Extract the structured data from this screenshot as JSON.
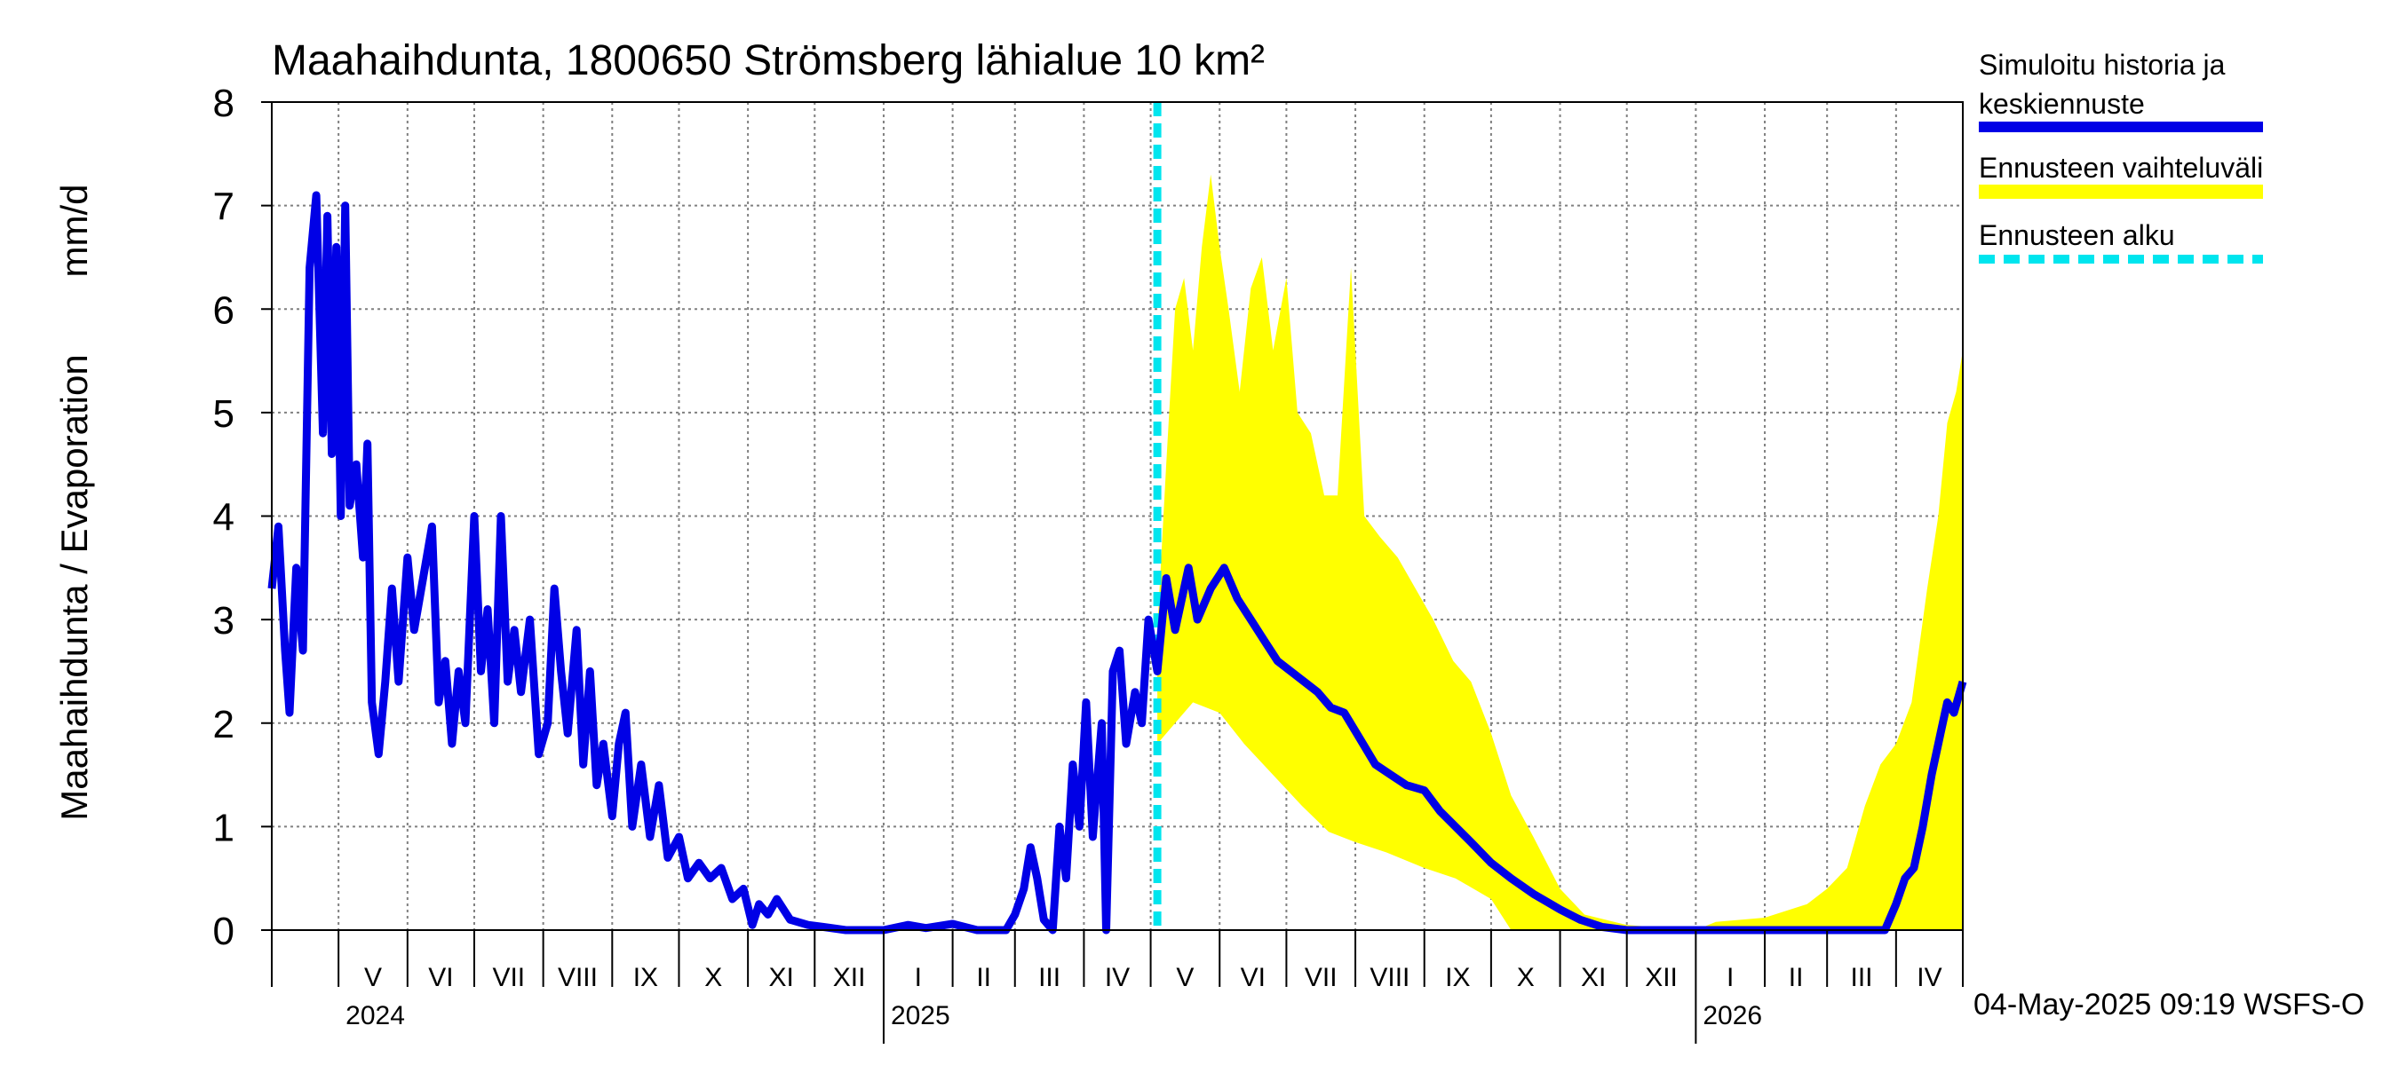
{
  "chart_data": {
    "type": "line",
    "title": "Maahaihdunta, 1800650 Strömsberg lähialue 10 km²",
    "ylabel_left": "Maahaihdunta / Evaporation",
    "ylabel_unit": "mm/d",
    "ylim": [
      0,
      8
    ],
    "yticks": [
      "0",
      "1",
      "2",
      "3",
      "4",
      "5",
      "6",
      "7",
      "8"
    ],
    "months": [
      "V",
      "VI",
      "VII",
      "VIII",
      "IX",
      "X",
      "XI",
      "XII",
      "I",
      "II",
      "III",
      "IV",
      "V",
      "VI",
      "VII",
      "VIII",
      "IX",
      "X",
      "XI",
      "XII",
      "I",
      "II",
      "III",
      "IV"
    ],
    "years": [
      "2024",
      "2025",
      "2026"
    ],
    "x_start": "2024-04-01",
    "x_end": "2026-05-01",
    "forecast_start": "2025-05-04",
    "legend": {
      "history": "Simuloitu historia ja",
      "history2": "keskiennuste",
      "range": "Ennusteen vaihteluväli",
      "start": "Ennusteen alku"
    },
    "colors": {
      "history": "#0000e6",
      "range": "#ffff00",
      "start": "#00e5ee",
      "grid": "#808080"
    },
    "series": [
      {
        "name": "Simuloitu historia ja keskiennuste",
        "points": [
          [
            "2024-04-01",
            3.3
          ],
          [
            "2024-04-04",
            3.9
          ],
          [
            "2024-04-07",
            2.7
          ],
          [
            "2024-04-09",
            2.1
          ],
          [
            "2024-04-12",
            3.5
          ],
          [
            "2024-04-15",
            2.7
          ],
          [
            "2024-04-18",
            6.4
          ],
          [
            "2024-04-21",
            7.1
          ],
          [
            "2024-04-24",
            4.8
          ],
          [
            "2024-04-26",
            6.9
          ],
          [
            "2024-04-28",
            4.6
          ],
          [
            "2024-04-30",
            6.6
          ],
          [
            "2024-05-02",
            4.0
          ],
          [
            "2024-05-04",
            7.0
          ],
          [
            "2024-05-06",
            4.1
          ],
          [
            "2024-05-09",
            4.5
          ],
          [
            "2024-05-12",
            3.6
          ],
          [
            "2024-05-14",
            4.7
          ],
          [
            "2024-05-16",
            2.2
          ],
          [
            "2024-05-19",
            1.7
          ],
          [
            "2024-05-22",
            2.4
          ],
          [
            "2024-05-25",
            3.3
          ],
          [
            "2024-05-28",
            2.4
          ],
          [
            "2024-06-01",
            3.6
          ],
          [
            "2024-06-04",
            2.9
          ],
          [
            "2024-06-08",
            3.4
          ],
          [
            "2024-06-12",
            3.9
          ],
          [
            "2024-06-15",
            2.2
          ],
          [
            "2024-06-18",
            2.6
          ],
          [
            "2024-06-21",
            1.8
          ],
          [
            "2024-06-24",
            2.5
          ],
          [
            "2024-06-27",
            2.0
          ],
          [
            "2024-07-01",
            4.0
          ],
          [
            "2024-07-04",
            2.5
          ],
          [
            "2024-07-07",
            3.1
          ],
          [
            "2024-07-10",
            2.0
          ],
          [
            "2024-07-13",
            4.0
          ],
          [
            "2024-07-16",
            2.4
          ],
          [
            "2024-07-19",
            2.9
          ],
          [
            "2024-07-22",
            2.3
          ],
          [
            "2024-07-26",
            3.0
          ],
          [
            "2024-07-30",
            1.7
          ],
          [
            "2024-08-03",
            2.0
          ],
          [
            "2024-08-06",
            3.3
          ],
          [
            "2024-08-09",
            2.5
          ],
          [
            "2024-08-12",
            1.9
          ],
          [
            "2024-08-16",
            2.9
          ],
          [
            "2024-08-19",
            1.6
          ],
          [
            "2024-08-22",
            2.5
          ],
          [
            "2024-08-25",
            1.4
          ],
          [
            "2024-08-28",
            1.8
          ],
          [
            "2024-09-01",
            1.1
          ],
          [
            "2024-09-04",
            1.8
          ],
          [
            "2024-09-07",
            2.1
          ],
          [
            "2024-09-10",
            1.0
          ],
          [
            "2024-09-14",
            1.6
          ],
          [
            "2024-09-18",
            0.9
          ],
          [
            "2024-09-22",
            1.4
          ],
          [
            "2024-09-26",
            0.7
          ],
          [
            "2024-10-01",
            0.9
          ],
          [
            "2024-10-05",
            0.5
          ],
          [
            "2024-10-10",
            0.65
          ],
          [
            "2024-10-15",
            0.5
          ],
          [
            "2024-10-20",
            0.6
          ],
          [
            "2024-10-25",
            0.3
          ],
          [
            "2024-10-30",
            0.4
          ],
          [
            "2024-11-03",
            0.05
          ],
          [
            "2024-11-06",
            0.25
          ],
          [
            "2024-11-10",
            0.15
          ],
          [
            "2024-11-14",
            0.3
          ],
          [
            "2024-11-20",
            0.1
          ],
          [
            "2024-11-28",
            0.05
          ],
          [
            "2024-12-05",
            0.03
          ],
          [
            "2024-12-15",
            0.0
          ],
          [
            "2025-01-01",
            0.0
          ],
          [
            "2025-01-12",
            0.05
          ],
          [
            "2025-01-20",
            0.02
          ],
          [
            "2025-02-01",
            0.06
          ],
          [
            "2025-02-12",
            0.0
          ],
          [
            "2025-02-25",
            0.0
          ],
          [
            "2025-03-01",
            0.15
          ],
          [
            "2025-03-05",
            0.4
          ],
          [
            "2025-03-08",
            0.8
          ],
          [
            "2025-03-11",
            0.5
          ],
          [
            "2025-03-14",
            0.1
          ],
          [
            "2025-03-18",
            0.0
          ],
          [
            "2025-03-21",
            1.0
          ],
          [
            "2025-03-24",
            0.5
          ],
          [
            "2025-03-27",
            1.6
          ],
          [
            "2025-03-30",
            1.0
          ],
          [
            "2025-04-02",
            2.2
          ],
          [
            "2025-04-05",
            0.9
          ],
          [
            "2025-04-09",
            2.0
          ],
          [
            "2025-04-11",
            0.0
          ],
          [
            "2025-04-14",
            2.5
          ],
          [
            "2025-04-17",
            2.7
          ],
          [
            "2025-04-20",
            1.8
          ],
          [
            "2025-04-24",
            2.3
          ],
          [
            "2025-04-27",
            2.0
          ],
          [
            "2025-04-30",
            3.0
          ],
          [
            "2025-05-04",
            2.5
          ],
          [
            "2025-05-08",
            3.4
          ],
          [
            "2025-05-12",
            2.9
          ],
          [
            "2025-05-18",
            3.5
          ],
          [
            "2025-05-22",
            3.0
          ],
          [
            "2025-05-28",
            3.3
          ],
          [
            "2025-06-03",
            3.5
          ],
          [
            "2025-06-09",
            3.2
          ],
          [
            "2025-06-15",
            3.0
          ],
          [
            "2025-06-21",
            2.8
          ],
          [
            "2025-06-27",
            2.6
          ],
          [
            "2025-07-03",
            2.5
          ],
          [
            "2025-07-09",
            2.4
          ],
          [
            "2025-07-15",
            2.3
          ],
          [
            "2025-07-21",
            2.15
          ],
          [
            "2025-07-27",
            2.1
          ],
          [
            "2025-08-03",
            1.85
          ],
          [
            "2025-08-10",
            1.6
          ],
          [
            "2025-08-17",
            1.5
          ],
          [
            "2025-08-24",
            1.4
          ],
          [
            "2025-09-01",
            1.35
          ],
          [
            "2025-09-08",
            1.15
          ],
          [
            "2025-09-15",
            1.0
          ],
          [
            "2025-09-22",
            0.85
          ],
          [
            "2025-10-01",
            0.65
          ],
          [
            "2025-10-10",
            0.5
          ],
          [
            "2025-10-20",
            0.35
          ],
          [
            "2025-11-01",
            0.2
          ],
          [
            "2025-11-10",
            0.1
          ],
          [
            "2025-11-20",
            0.03
          ],
          [
            "2025-12-01",
            0.0
          ],
          [
            "2026-01-01",
            0.0
          ],
          [
            "2026-02-01",
            0.0
          ],
          [
            "2026-03-01",
            0.0
          ],
          [
            "2026-03-27",
            0.0
          ],
          [
            "2026-04-01",
            0.25
          ],
          [
            "2026-04-05",
            0.5
          ],
          [
            "2026-04-09",
            0.6
          ],
          [
            "2026-04-13",
            1.0
          ],
          [
            "2026-04-17",
            1.5
          ],
          [
            "2026-04-21",
            1.9
          ],
          [
            "2026-04-24",
            2.2
          ],
          [
            "2026-04-27",
            2.1
          ],
          [
            "2026-05-01",
            2.4
          ]
        ]
      }
    ],
    "range_band": {
      "upper": [
        [
          "2025-05-04",
          2.9
        ],
        [
          "2025-05-08",
          4.5
        ],
        [
          "2025-05-12",
          6.0
        ],
        [
          "2025-05-16",
          6.3
        ],
        [
          "2025-05-20",
          5.6
        ],
        [
          "2025-05-24",
          6.6
        ],
        [
          "2025-05-28",
          7.3
        ],
        [
          "2025-06-01",
          6.6
        ],
        [
          "2025-06-05",
          6.0
        ],
        [
          "2025-06-10",
          5.2
        ],
        [
          "2025-06-15",
          6.2
        ],
        [
          "2025-06-20",
          6.5
        ],
        [
          "2025-06-25",
          5.6
        ],
        [
          "2025-07-01",
          6.3
        ],
        [
          "2025-07-06",
          5.0
        ],
        [
          "2025-07-12",
          4.8
        ],
        [
          "2025-07-18",
          4.2
        ],
        [
          "2025-07-24",
          4.2
        ],
        [
          "2025-07-30",
          6.4
        ],
        [
          "2025-08-05",
          4.0
        ],
        [
          "2025-08-12",
          3.8
        ],
        [
          "2025-08-20",
          3.6
        ],
        [
          "2025-08-28",
          3.3
        ],
        [
          "2025-09-05",
          3.0
        ],
        [
          "2025-09-14",
          2.6
        ],
        [
          "2025-09-22",
          2.4
        ],
        [
          "2025-10-01",
          1.9
        ],
        [
          "2025-10-10",
          1.3
        ],
        [
          "2025-10-20",
          0.9
        ],
        [
          "2025-11-01",
          0.4
        ],
        [
          "2025-11-12",
          0.15
        ],
        [
          "2025-12-01",
          0.05
        ],
        [
          "2026-01-01",
          0.0
        ],
        [
          "2026-01-10",
          0.08
        ],
        [
          "2026-02-01",
          0.12
        ],
        [
          "2026-02-20",
          0.25
        ],
        [
          "2026-03-01",
          0.4
        ],
        [
          "2026-03-10",
          0.6
        ],
        [
          "2026-03-18",
          1.2
        ],
        [
          "2026-03-25",
          1.6
        ],
        [
          "2026-04-01",
          1.8
        ],
        [
          "2026-04-08",
          2.2
        ],
        [
          "2026-04-15",
          3.3
        ],
        [
          "2026-04-20",
          4.0
        ],
        [
          "2026-04-24",
          4.9
        ],
        [
          "2026-04-28",
          5.2
        ],
        [
          "2026-05-01",
          5.6
        ]
      ],
      "lower": [
        [
          "2025-05-04",
          1.8
        ],
        [
          "2025-05-12",
          2.0
        ],
        [
          "2025-05-20",
          2.2
        ],
        [
          "2025-06-01",
          2.1
        ],
        [
          "2025-06-12",
          1.8
        ],
        [
          "2025-06-25",
          1.5
        ],
        [
          "2025-07-08",
          1.2
        ],
        [
          "2025-07-20",
          0.95
        ],
        [
          "2025-08-01",
          0.85
        ],
        [
          "2025-08-15",
          0.75
        ],
        [
          "2025-09-01",
          0.6
        ],
        [
          "2025-09-15",
          0.5
        ],
        [
          "2025-10-01",
          0.3
        ],
        [
          "2025-10-10",
          0.0
        ],
        [
          "2026-05-01",
          0.0
        ]
      ]
    }
  }
}
